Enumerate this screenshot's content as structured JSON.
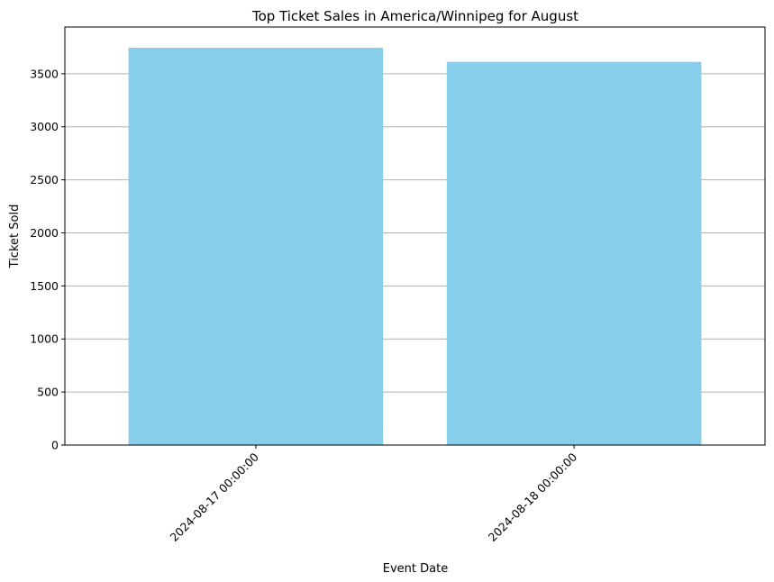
{
  "chart_data": {
    "type": "bar",
    "title": "Top Ticket Sales in America/Winnipeg for August",
    "xlabel": "Event Date",
    "ylabel": "Ticket Sold",
    "categories": [
      "2024-08-17 00:00:00",
      "2024-08-18 00:00:00"
    ],
    "values": [
      3745,
      3612
    ],
    "ylim": [
      0,
      3745
    ],
    "yticks": [
      0,
      500,
      1000,
      1500,
      2000,
      2500,
      3000,
      3500
    ],
    "grid": "horizontal",
    "bar_color": "#87ceeb",
    "grid_color": "#b0b0b0"
  }
}
